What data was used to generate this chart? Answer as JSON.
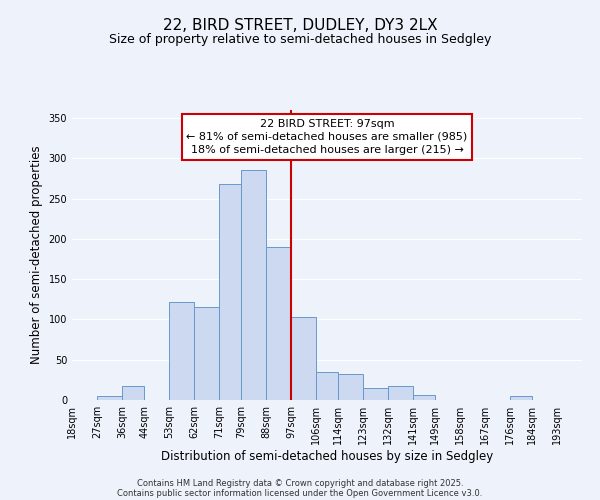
{
  "title": "22, BIRD STREET, DUDLEY, DY3 2LX",
  "subtitle": "Size of property relative to semi-detached houses in Sedgley",
  "xlabel": "Distribution of semi-detached houses by size in Sedgley",
  "ylabel": "Number of semi-detached properties",
  "bin_labels": [
    "18sqm",
    "27sqm",
    "36sqm",
    "44sqm",
    "53sqm",
    "62sqm",
    "71sqm",
    "79sqm",
    "88sqm",
    "97sqm",
    "106sqm",
    "114sqm",
    "123sqm",
    "132sqm",
    "141sqm",
    "149sqm",
    "158sqm",
    "167sqm",
    "176sqm",
    "184sqm",
    "193sqm"
  ],
  "bin_edges": [
    18,
    27,
    36,
    44,
    53,
    62,
    71,
    79,
    88,
    97,
    106,
    114,
    123,
    132,
    141,
    149,
    158,
    167,
    176,
    184,
    193,
    202
  ],
  "bar_heights": [
    0,
    5,
    18,
    0,
    122,
    115,
    268,
    285,
    190,
    103,
    35,
    32,
    15,
    18,
    6,
    0,
    0,
    0,
    5,
    0,
    0
  ],
  "bar_facecolor": "#ccd9f0",
  "bar_edgecolor": "#6699cc",
  "background_color": "#eef2fb",
  "gridcolor": "#ffffff",
  "vline_x": 97,
  "vline_color": "#cc0000",
  "annotation_text": "22 BIRD STREET: 97sqm\n← 81% of semi-detached houses are smaller (985)\n18% of semi-detached houses are larger (215) →",
  "annotation_box_edgecolor": "#cc0000",
  "annotation_box_facecolor": "#ffffff",
  "ylim": [
    0,
    360
  ],
  "yticks": [
    0,
    50,
    100,
    150,
    200,
    250,
    300,
    350
  ],
  "footer_line1": "Contains HM Land Registry data © Crown copyright and database right 2025.",
  "footer_line2": "Contains public sector information licensed under the Open Government Licence v3.0.",
  "title_fontsize": 11,
  "subtitle_fontsize": 9,
  "axis_label_fontsize": 8.5,
  "tick_fontsize": 7,
  "annotation_fontsize": 8,
  "footer_fontsize": 6
}
